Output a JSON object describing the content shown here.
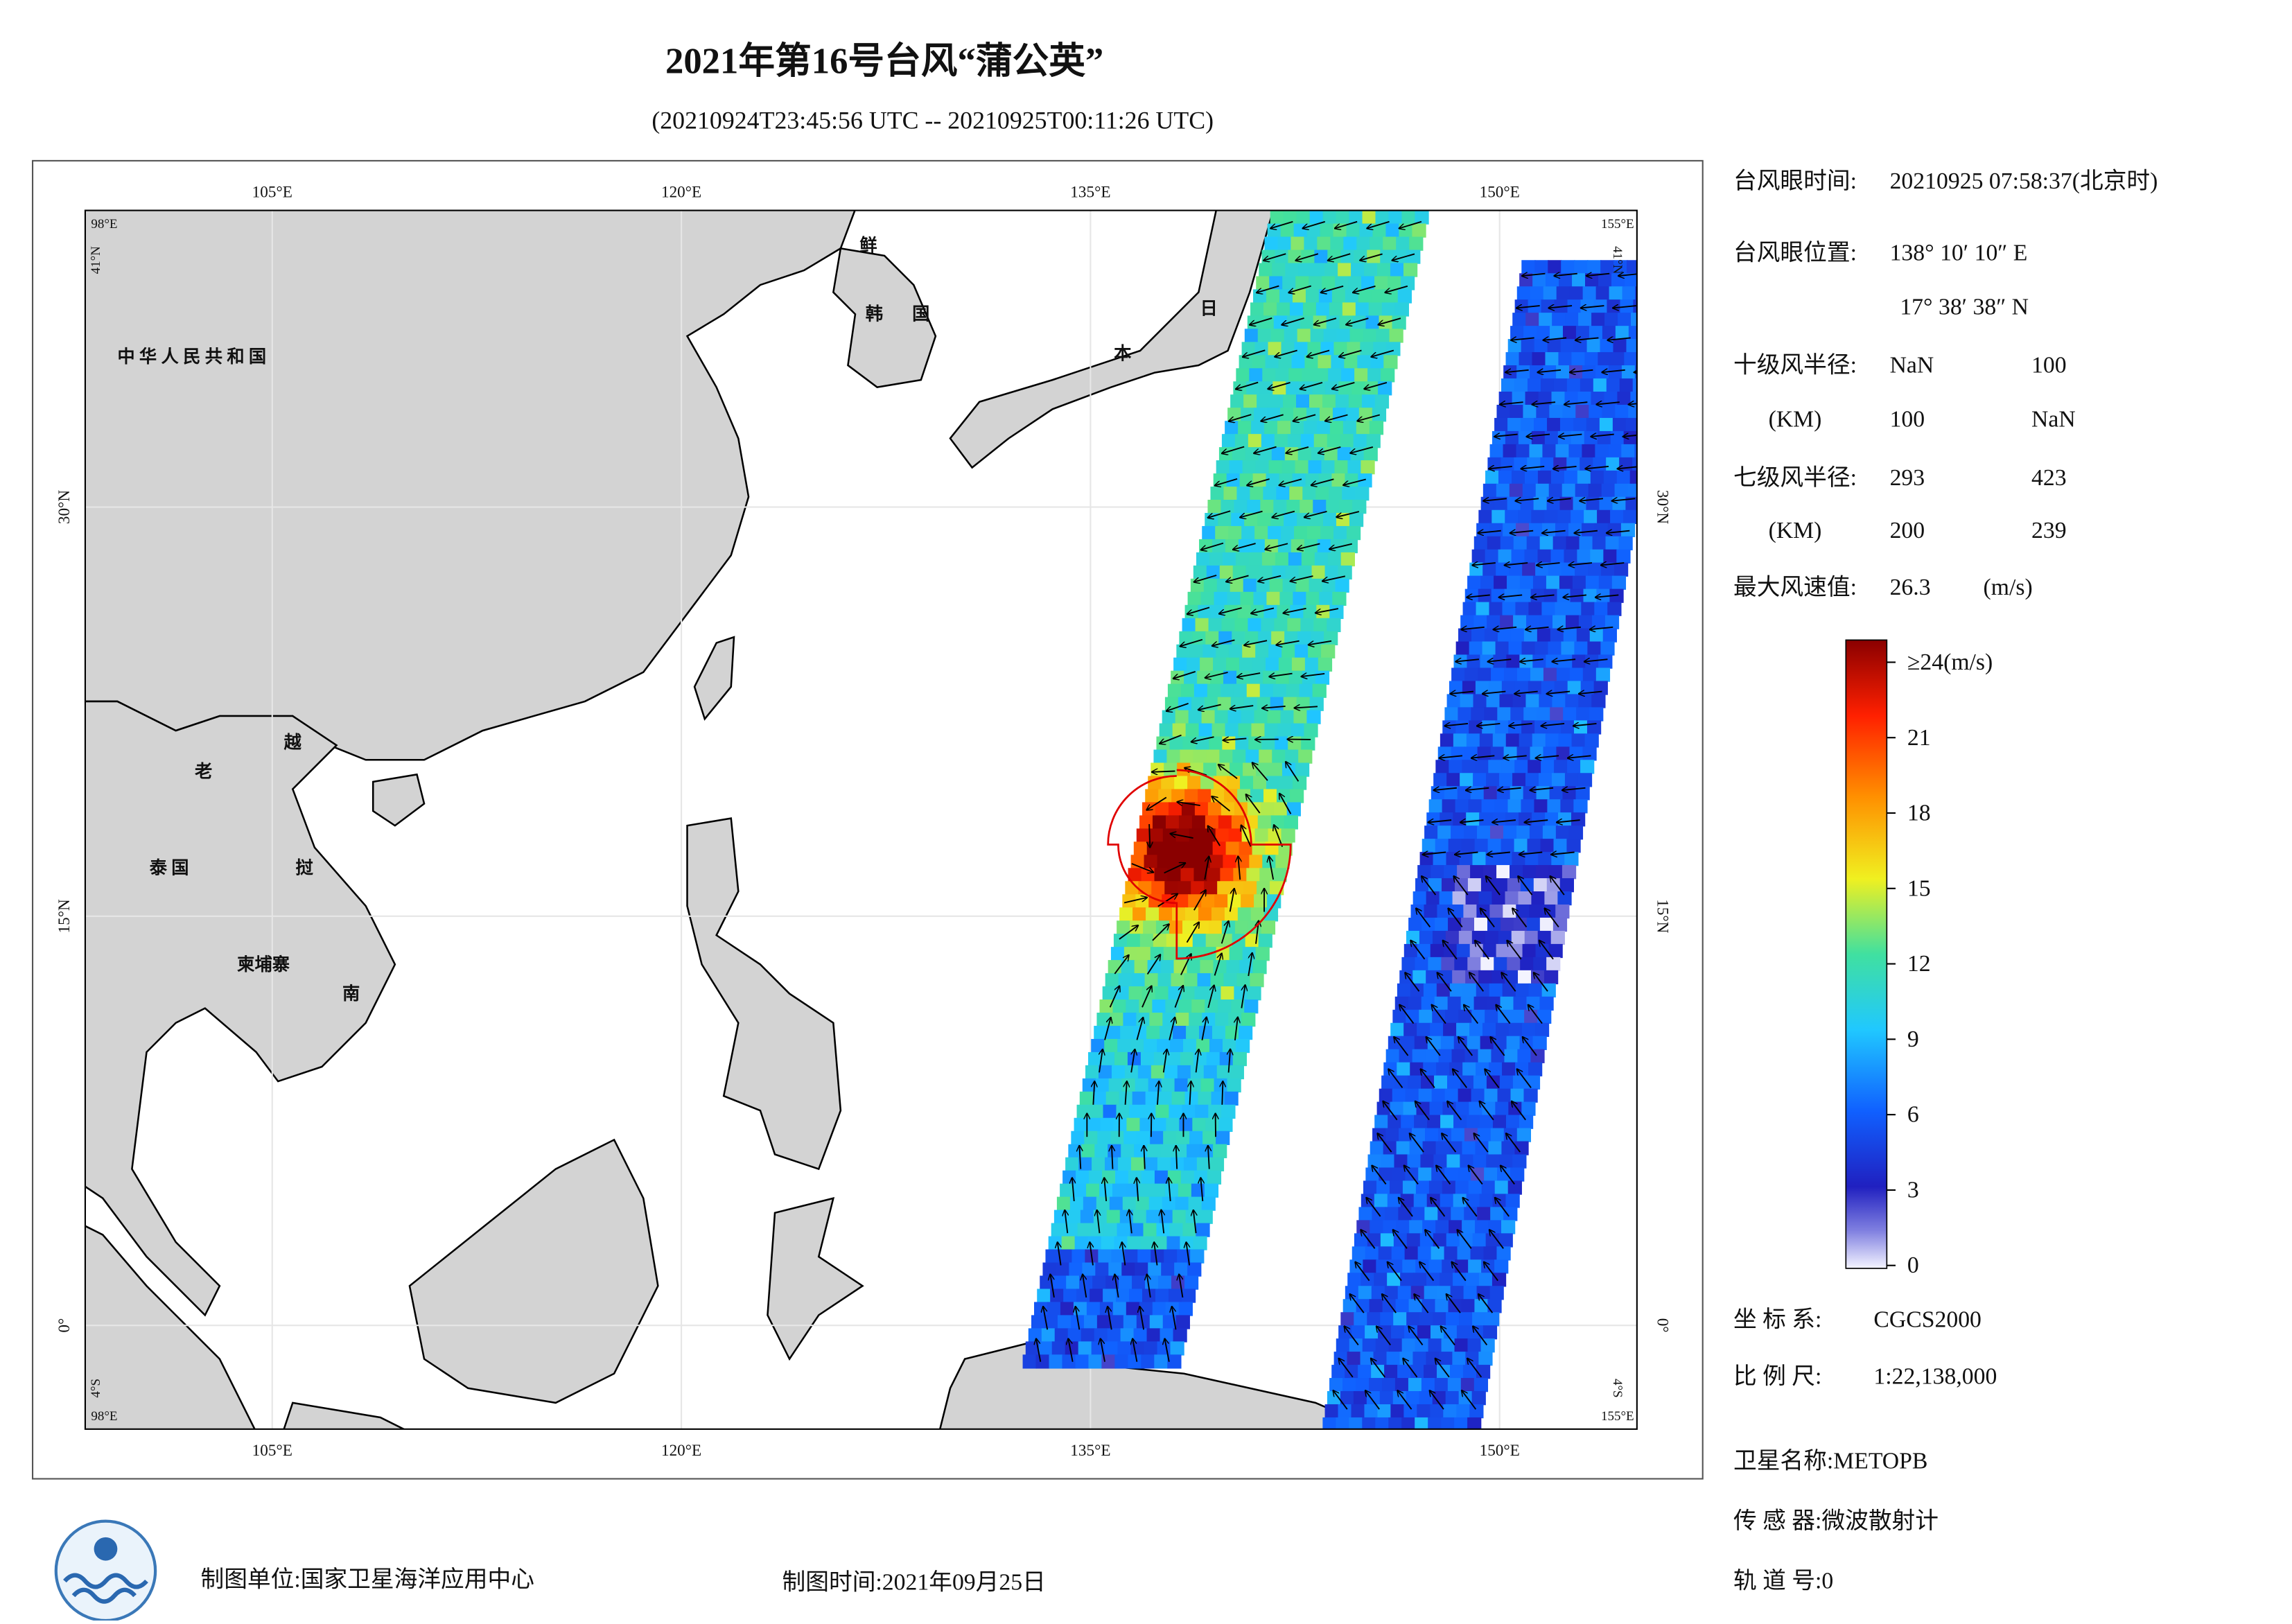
{
  "header": {
    "title": "2021年第16号台风“蒲公英”",
    "subtitle": "(20210924T23:45:56 UTC -- 20210925T00:11:26 UTC)"
  },
  "map": {
    "lon_ticks": [
      {
        "value": 105,
        "label": "105°E"
      },
      {
        "value": 120,
        "label": "120°E"
      },
      {
        "value": 135,
        "label": "135°E"
      },
      {
        "value": 150,
        "label": "150°E"
      }
    ],
    "lat_ticks": [
      {
        "value": 30,
        "label": "30°N"
      },
      {
        "value": 15,
        "label": "15°N"
      },
      {
        "value": 0,
        "label": "0°"
      }
    ],
    "corner_labels": [
      "98°E",
      "41°N",
      "155°E",
      "41°N",
      "98°E",
      "4°S",
      "155°E",
      "4°S"
    ],
    "places": [
      "中 华 人 民 共 和 国",
      "鲜",
      "韩",
      "国",
      "日",
      "本",
      "老",
      "越",
      "泰 国",
      "挝",
      "柬埔寨",
      "南"
    ]
  },
  "info": [
    [
      "台风眼时间:",
      "20210925 07:58:37(北京时)"
    ],
    [
      "台风眼位置:",
      "138° 10′ 10″ E"
    ],
    [
      "17° 38′ 38″ N"
    ],
    [
      "十级风半径:",
      "NaN",
      "100"
    ],
    [
      "(KM)",
      "100",
      "NaN"
    ],
    [
      "七级风半径:",
      "293",
      "423"
    ],
    [
      "(KM)",
      "200",
      "239"
    ],
    [
      "最大风速值:",
      "26.3",
      "(m/s)"
    ]
  ],
  "colorbar": {
    "ticks": [
      0,
      3,
      6,
      9,
      12,
      15,
      18,
      21,
      {
        "value": 24,
        "label": "≥24(m/s)"
      }
    ]
  },
  "footer": {
    "coordinate": [
      "坐 标 系:",
      "CGCS2000"
    ],
    "scale": [
      "比 例 尺:",
      "1:22,138,000"
    ],
    "satellite": "卫星名称:METOPB",
    "sensor": "传 感 器:微波散射计",
    "orbit": "轨 道 号:0",
    "unit": "制图单位:国家卫星海洋应用中心",
    "time": "制图时间:2021年09月25日"
  }
}
